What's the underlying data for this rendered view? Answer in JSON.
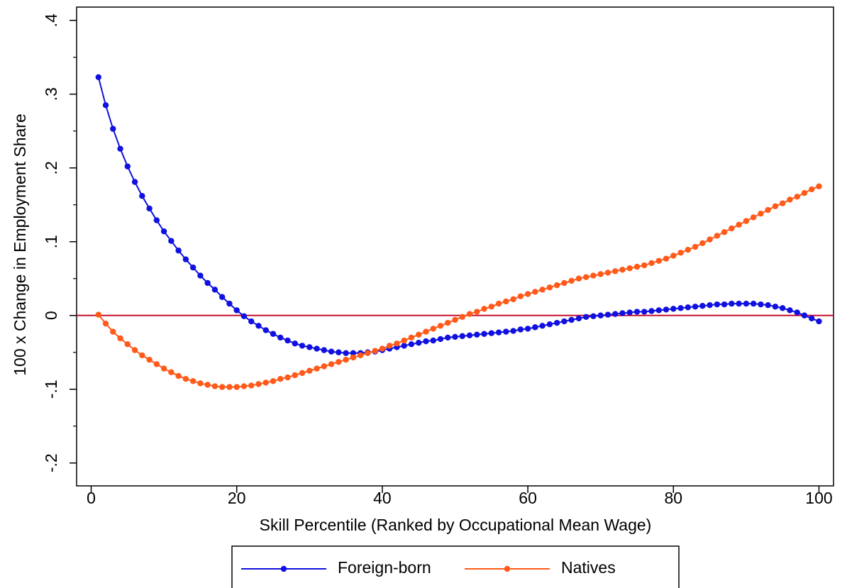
{
  "chart_data": {
    "type": "line",
    "x_label": "Skill Percentile (Ranked by Occupational Mean Wage)",
    "y_label": "100 x Change in Employment Share",
    "x": [
      1,
      2,
      3,
      4,
      5,
      6,
      7,
      8,
      9,
      10,
      11,
      12,
      13,
      14,
      15,
      16,
      17,
      18,
      19,
      20,
      21,
      22,
      23,
      24,
      25,
      26,
      27,
      28,
      29,
      30,
      31,
      32,
      33,
      34,
      35,
      36,
      37,
      38,
      39,
      40,
      41,
      42,
      43,
      44,
      45,
      46,
      47,
      48,
      49,
      50,
      51,
      52,
      53,
      54,
      55,
      56,
      57,
      58,
      59,
      60,
      61,
      62,
      63,
      64,
      65,
      66,
      67,
      68,
      69,
      70,
      71,
      72,
      73,
      74,
      75,
      76,
      77,
      78,
      79,
      80,
      81,
      82,
      83,
      84,
      85,
      86,
      87,
      88,
      89,
      90,
      91,
      92,
      93,
      94,
      95,
      96,
      97,
      98,
      99,
      100
    ],
    "series": [
      {
        "name": "Foreign-born",
        "color": "#1010e0",
        "values": [
          0.323,
          0.285,
          0.253,
          0.226,
          0.202,
          0.181,
          0.162,
          0.145,
          0.129,
          0.114,
          0.101,
          0.088,
          0.076,
          0.065,
          0.054,
          0.044,
          0.035,
          0.025,
          0.016,
          0.007,
          -0.001,
          -0.008,
          -0.014,
          -0.02,
          -0.025,
          -0.03,
          -0.034,
          -0.038,
          -0.041,
          -0.043,
          -0.045,
          -0.047,
          -0.049,
          -0.05,
          -0.051,
          -0.051,
          -0.051,
          -0.05,
          -0.049,
          -0.047,
          -0.045,
          -0.043,
          -0.041,
          -0.039,
          -0.037,
          -0.035,
          -0.034,
          -0.032,
          -0.03,
          -0.029,
          -0.028,
          -0.027,
          -0.026,
          -0.025,
          -0.024,
          -0.023,
          -0.022,
          -0.021,
          -0.019,
          -0.018,
          -0.016,
          -0.014,
          -0.012,
          -0.01,
          -0.008,
          -0.006,
          -0.004,
          -0.002,
          -0.001,
          0.0,
          0.001,
          0.002,
          0.003,
          0.004,
          0.005,
          0.005,
          0.006,
          0.007,
          0.008,
          0.009,
          0.01,
          0.011,
          0.012,
          0.013,
          0.014,
          0.015,
          0.015,
          0.016,
          0.016,
          0.016,
          0.016,
          0.015,
          0.014,
          0.012,
          0.01,
          0.007,
          0.004,
          0.0,
          -0.004,
          -0.008
        ]
      },
      {
        "name": "Natives",
        "color": "#ff5a1a",
        "values": [
          0.001,
          -0.011,
          -0.022,
          -0.031,
          -0.039,
          -0.047,
          -0.054,
          -0.06,
          -0.066,
          -0.072,
          -0.077,
          -0.082,
          -0.086,
          -0.089,
          -0.092,
          -0.094,
          -0.096,
          -0.097,
          -0.097,
          -0.097,
          -0.096,
          -0.095,
          -0.093,
          -0.091,
          -0.089,
          -0.086,
          -0.084,
          -0.081,
          -0.078,
          -0.075,
          -0.072,
          -0.069,
          -0.066,
          -0.063,
          -0.06,
          -0.057,
          -0.054,
          -0.051,
          -0.048,
          -0.045,
          -0.041,
          -0.038,
          -0.034,
          -0.03,
          -0.026,
          -0.022,
          -0.018,
          -0.014,
          -0.01,
          -0.006,
          -0.002,
          0.002,
          0.005,
          0.009,
          0.012,
          0.016,
          0.019,
          0.022,
          0.026,
          0.029,
          0.032,
          0.035,
          0.038,
          0.041,
          0.044,
          0.047,
          0.05,
          0.052,
          0.054,
          0.056,
          0.058,
          0.06,
          0.062,
          0.064,
          0.066,
          0.068,
          0.071,
          0.074,
          0.077,
          0.081,
          0.085,
          0.089,
          0.093,
          0.098,
          0.103,
          0.108,
          0.113,
          0.118,
          0.123,
          0.128,
          0.133,
          0.138,
          0.143,
          0.148,
          0.152,
          0.157,
          0.161,
          0.166,
          0.171,
          0.175
        ]
      }
    ],
    "xlim": [
      -2,
      102
    ],
    "xticks": [
      0,
      20,
      40,
      60,
      80,
      100
    ],
    "ylim": [
      -0.231,
      0.418
    ],
    "yticks": [
      {
        "value": -0.2,
        "label": "-.2"
      },
      {
        "value": -0.1,
        "label": "-.1"
      },
      0,
      {
        "value": 0.1,
        "label": ".1"
      },
      {
        "value": 0.2,
        "label": ".2"
      },
      {
        "value": 0.3,
        "label": ".3"
      },
      {
        "value": 0.4,
        "label": ".4"
      }
    ],
    "yminorticks": [
      -0.15,
      -0.05,
      0.05,
      0.15,
      0.25,
      0.35
    ],
    "hline": {
      "value": 0,
      "color": "#c8102e"
    },
    "legend": "bottom"
  }
}
